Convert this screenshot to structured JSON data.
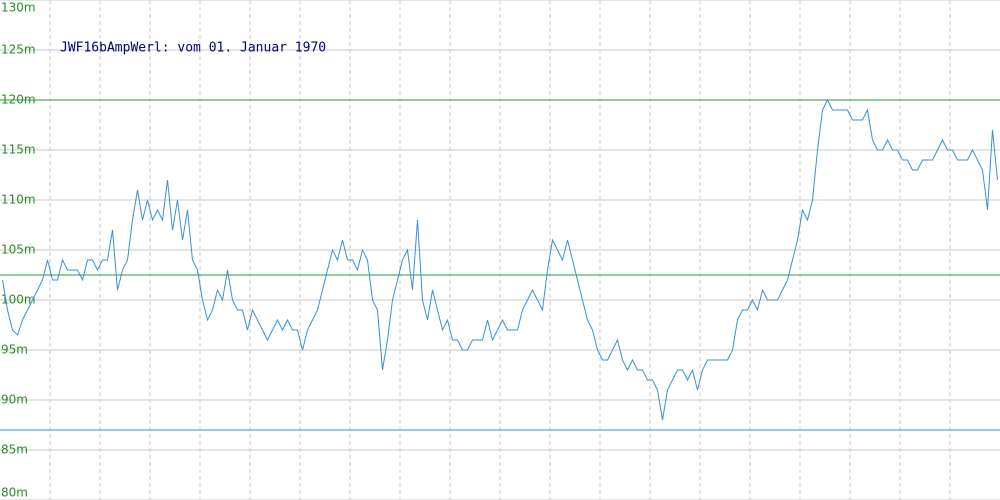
{
  "chart_data": {
    "type": "line",
    "title": "JWF16bAmpWerl: vom 01. Januar 1970",
    "values": [
      102,
      99,
      97,
      96.5,
      98,
      99,
      100,
      101,
      102,
      104,
      102,
      102,
      104,
      103,
      103,
      103,
      102,
      104,
      104,
      103,
      104,
      104,
      107,
      101,
      103,
      104,
      108,
      111,
      108,
      110,
      108,
      109,
      108,
      112,
      107,
      110,
      106,
      109,
      104,
      103,
      100,
      98,
      99,
      101,
      100,
      103,
      100,
      99,
      99,
      97,
      99,
      98,
      97,
      96,
      97,
      98,
      97,
      98,
      97,
      97,
      95,
      97,
      98,
      99,
      101,
      103,
      105,
      104,
      106,
      104,
      104,
      103,
      105,
      104,
      100,
      99,
      93,
      96,
      100,
      102,
      104,
      105,
      101,
      108,
      100,
      98,
      101,
      99,
      97,
      98,
      96,
      96,
      95,
      95,
      96,
      96,
      96,
      98,
      96,
      97,
      98,
      97,
      97,
      97,
      99,
      100,
      101,
      100,
      99,
      103,
      106,
      105,
      104,
      106,
      104,
      102,
      100,
      98,
      97,
      95,
      94,
      94,
      95,
      96,
      94,
      93,
      94,
      93,
      93,
      92,
      92,
      91,
      88,
      91,
      92,
      93,
      93,
      92,
      93,
      91,
      93,
      94,
      94,
      94,
      94,
      94,
      95,
      98,
      99,
      99,
      100,
      99,
      101,
      100,
      100,
      100,
      101,
      102,
      104,
      106,
      109,
      108,
      110,
      115,
      119,
      120,
      119,
      119,
      119,
      119,
      118,
      118,
      118,
      119,
      116,
      115,
      115,
      116,
      115,
      115,
      114,
      114,
      113,
      113,
      114,
      114,
      114,
      115,
      116,
      115,
      115,
      114,
      114,
      114,
      115,
      114,
      113,
      109,
      117,
      112
    ],
    "color": "#3a8fd8",
    "ylim": [
      80,
      130
    ],
    "yticks": [
      {
        "value": 80,
        "label": "80m"
      },
      {
        "value": 85,
        "label": "85m"
      },
      {
        "value": 90,
        "label": "90m"
      },
      {
        "value": 95,
        "label": "95m"
      },
      {
        "value": 100,
        "label": "100m"
      },
      {
        "value": 105,
        "label": "105m"
      },
      {
        "value": 110,
        "label": "110m"
      },
      {
        "value": 115,
        "label": "115m"
      },
      {
        "value": 120,
        "label": "120m"
      },
      {
        "value": 125,
        "label": "125m"
      },
      {
        "value": 130,
        "label": "130m"
      }
    ],
    "grid": true,
    "reference_lines": [
      {
        "value": 120,
        "color": "#2e9a2e"
      },
      {
        "value": 102.5,
        "color": "#2e9a2e"
      },
      {
        "value": 87,
        "color": "#3a8fd8"
      }
    ]
  }
}
